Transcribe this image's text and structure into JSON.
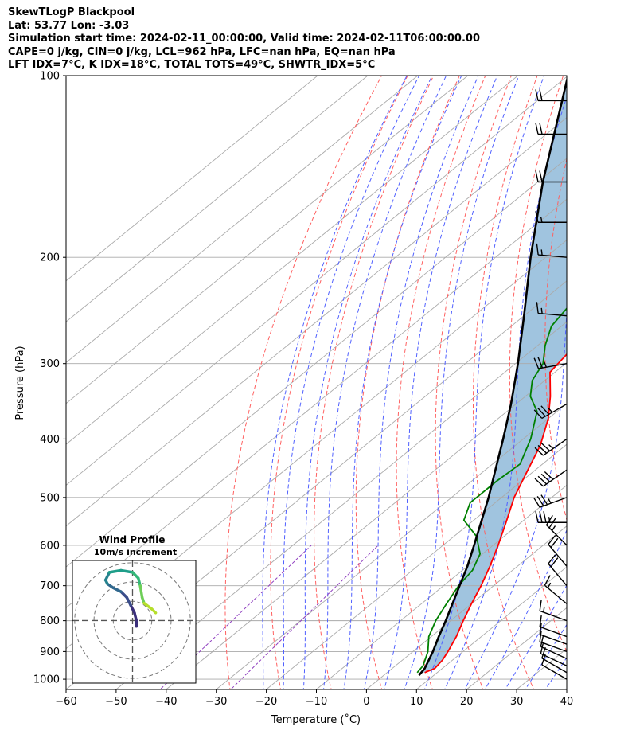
{
  "header": {
    "lines": [
      "SkewTLogP Blackpool",
      "Lat: 53.77   Lon: -3.03",
      "Simulation start time: 2024-02-11_00:00:00, Valid time: 2024-02-11T06:00:00.00",
      "CAPE=0 j/kg, CIN=0 j/kg, LCL=962 hPa, LFC=nan hPa, EQ=nan hPa",
      "LFT IDX=7°C, K IDX=18°C, TOTAL TOTS=49°C, SHWTR_IDX=5°C"
    ]
  },
  "colors": {
    "temperature": "#ff0000",
    "dewpoint": "#008000",
    "parcel": "#000000",
    "cape_fill": "#a0c4df",
    "dry_adiabat": "#ff6060",
    "moist_adiabat": "#5060ff",
    "mixing_ratio": "#9040c0",
    "isotherm": "#aaaaaa"
  },
  "chart_data": {
    "type": "skewt",
    "xlabel": "Temperature (˚C)",
    "ylabel": "Pressure (hPa)",
    "xlim": [
      -60,
      40
    ],
    "ylim": [
      1040,
      100
    ],
    "x_ticks": [
      -60,
      -50,
      -40,
      -30,
      -20,
      -10,
      0,
      10,
      20,
      30,
      40
    ],
    "x_tick_labels": [
      "−60",
      "−50",
      "−40",
      "−30",
      "−20",
      "−10",
      "0",
      "10",
      "20",
      "30",
      "40"
    ],
    "y_ticks": [
      1000,
      900,
      800,
      700,
      600,
      500,
      400,
      300,
      200,
      100
    ],
    "y_tick_labels": [
      "1000",
      "900",
      "800",
      "700",
      "600",
      "500",
      "400",
      "300",
      "200",
      "100"
    ],
    "grid": true,
    "temperature": [
      {
        "p": 975,
        "t": 7.5
      },
      {
        "p": 960,
        "t": 8.5
      },
      {
        "p": 930,
        "t": 8.0
      },
      {
        "p": 900,
        "t": 7.0
      },
      {
        "p": 850,
        "t": 5.0
      },
      {
        "p": 800,
        "t": 2.5
      },
      {
        "p": 750,
        "t": 0.0
      },
      {
        "p": 700,
        "t": -2.5
      },
      {
        "p": 650,
        "t": -5.5
      },
      {
        "p": 600,
        "t": -9.0
      },
      {
        "p": 550,
        "t": -13.0
      },
      {
        "p": 500,
        "t": -17.5
      },
      {
        "p": 450,
        "t": -21.5
      },
      {
        "p": 410,
        "t": -25.0
      },
      {
        "p": 370,
        "t": -30.0
      },
      {
        "p": 340,
        "t": -35.0
      },
      {
        "p": 310,
        "t": -41.0
      },
      {
        "p": 290,
        "t": -42.0
      },
      {
        "p": 260,
        "t": -45.0
      },
      {
        "p": 240,
        "t": -45.0
      },
      {
        "p": 220,
        "t": -47.0
      },
      {
        "p": 200,
        "t": -49.0
      },
      {
        "p": 170,
        "t": -51.0
      },
      {
        "p": 150,
        "t": -53.0
      },
      {
        "p": 130,
        "t": -57.0
      },
      {
        "p": 110,
        "t": -65.0
      },
      {
        "p": 100,
        "t": -71.0
      }
    ],
    "dewpoint": [
      {
        "p": 975,
        "t": 6.0
      },
      {
        "p": 950,
        "t": 5.5
      },
      {
        "p": 900,
        "t": 3.0
      },
      {
        "p": 850,
        "t": -0.5
      },
      {
        "p": 800,
        "t": -3.0
      },
      {
        "p": 750,
        "t": -5.0
      },
      {
        "p": 700,
        "t": -7.0
      },
      {
        "p": 660,
        "t": -8.0
      },
      {
        "p": 620,
        "t": -10.5
      },
      {
        "p": 580,
        "t": -15.5
      },
      {
        "p": 545,
        "t": -22.0
      },
      {
        "p": 510,
        "t": -25.0
      },
      {
        "p": 470,
        "t": -25.0
      },
      {
        "p": 440,
        "t": -24.5
      },
      {
        "p": 400,
        "t": -28.5
      },
      {
        "p": 360,
        "t": -34.0
      },
      {
        "p": 340,
        "t": -39.0
      },
      {
        "p": 320,
        "t": -42.5
      },
      {
        "p": 300,
        "t": -44.5
      },
      {
        "p": 280,
        "t": -48.5
      },
      {
        "p": 260,
        "t": -52.0
      },
      {
        "p": 240,
        "t": -53.5
      },
      {
        "p": 220,
        "t": -54.0
      },
      {
        "p": 210,
        "t": -53.0
      },
      {
        "p": 190,
        "t": -56.0
      },
      {
        "p": 175,
        "t": -58.5
      },
      {
        "p": 160,
        "t": -57.0
      },
      {
        "p": 140,
        "t": -58.0
      },
      {
        "p": 120,
        "t": -62.0
      },
      {
        "p": 100,
        "t": -69.0
      }
    ],
    "parcel": [
      {
        "p": 985,
        "t": 7.0
      },
      {
        "p": 960,
        "t": 6.5
      },
      {
        "p": 900,
        "t": 4.0
      },
      {
        "p": 850,
        "t": 1.5
      },
      {
        "p": 800,
        "t": -1.0
      },
      {
        "p": 750,
        "t": -3.8
      },
      {
        "p": 700,
        "t": -6.8
      },
      {
        "p": 650,
        "t": -10.0
      },
      {
        "p": 600,
        "t": -13.8
      },
      {
        "p": 550,
        "t": -18.0
      },
      {
        "p": 500,
        "t": -22.6
      },
      {
        "p": 450,
        "t": -28.0
      },
      {
        "p": 400,
        "t": -34.0
      },
      {
        "p": 350,
        "t": -41.0
      },
      {
        "p": 300,
        "t": -49.5
      },
      {
        "p": 250,
        "t": -60.0
      },
      {
        "p": 200,
        "t": -73.0
      },
      {
        "p": 150,
        "t": -89.0
      },
      {
        "p": 100,
        "t": -110.0
      }
    ],
    "wind_barbs": [
      {
        "p": 1000,
        "speed_kt": 10,
        "dir": 300
      },
      {
        "p": 975,
        "speed_kt": 10,
        "dir": 300
      },
      {
        "p": 950,
        "speed_kt": 10,
        "dir": 295
      },
      {
        "p": 925,
        "speed_kt": 10,
        "dir": 295
      },
      {
        "p": 900,
        "speed_kt": 10,
        "dir": 290
      },
      {
        "p": 875,
        "speed_kt": 10,
        "dir": 290
      },
      {
        "p": 850,
        "speed_kt": 10,
        "dir": 290
      },
      {
        "p": 800,
        "speed_kt": 15,
        "dir": 290
      },
      {
        "p": 750,
        "speed_kt": 15,
        "dir": 310
      },
      {
        "p": 700,
        "speed_kt": 20,
        "dir": 320
      },
      {
        "p": 650,
        "speed_kt": 20,
        "dir": 320
      },
      {
        "p": 600,
        "speed_kt": 25,
        "dir": 315
      },
      {
        "p": 550,
        "speed_kt": 35,
        "dir": 270
      },
      {
        "p": 500,
        "speed_kt": 35,
        "dir": 250
      },
      {
        "p": 450,
        "speed_kt": 40,
        "dir": 235
      },
      {
        "p": 400,
        "speed_kt": 35,
        "dir": 235
      },
      {
        "p": 350,
        "speed_kt": 35,
        "dir": 240
      },
      {
        "p": 300,
        "speed_kt": 25,
        "dir": 260
      },
      {
        "p": 250,
        "speed_kt": 15,
        "dir": 275
      },
      {
        "p": 200,
        "speed_kt": 15,
        "dir": 275
      },
      {
        "p": 175,
        "speed_kt": 15,
        "dir": 270
      },
      {
        "p": 150,
        "speed_kt": 20,
        "dir": 270
      },
      {
        "p": 125,
        "speed_kt": 20,
        "dir": 270
      },
      {
        "p": 110,
        "speed_kt": 20,
        "dir": 270
      }
    ],
    "hodograph": {
      "title": "Wind Profile",
      "subtitle": "10m/s increment",
      "rings": [
        10,
        20,
        30
      ],
      "range": 32,
      "points": [
        {
          "u": 2,
          "v": -3
        },
        {
          "u": 2,
          "v": 0
        },
        {
          "u": 1,
          "v": 4
        },
        {
          "u": -1,
          "v": 8
        },
        {
          "u": -3,
          "v": 12
        },
        {
          "u": -6,
          "v": 15
        },
        {
          "u": -10,
          "v": 17
        },
        {
          "u": -13,
          "v": 19
        },
        {
          "u": -14,
          "v": 21
        },
        {
          "u": -12,
          "v": 25
        },
        {
          "u": -6,
          "v": 26
        },
        {
          "u": 0,
          "v": 25
        },
        {
          "u": 3,
          "v": 22
        },
        {
          "u": 4,
          "v": 18
        },
        {
          "u": 5,
          "v": 12
        },
        {
          "u": 6,
          "v": 9
        },
        {
          "u": 10,
          "v": 6
        },
        {
          "u": 12,
          "v": 4
        }
      ]
    }
  }
}
